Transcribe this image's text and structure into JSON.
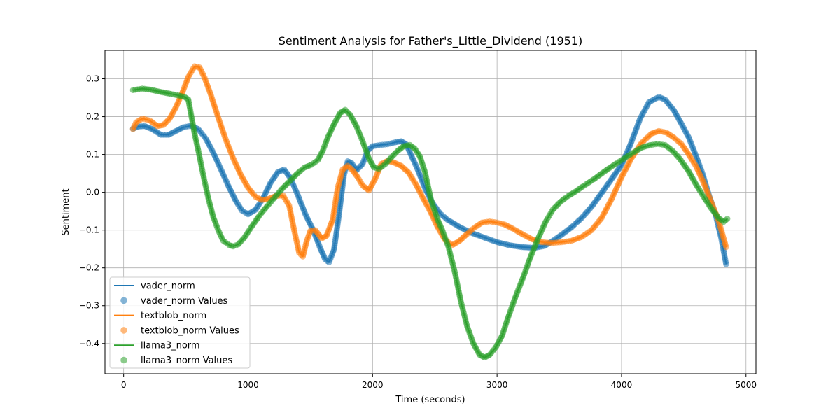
{
  "chart_data": {
    "type": "line",
    "title": "Sentiment Analysis for Father's_Little_Dividend (1951)",
    "xlabel": "Time (seconds)",
    "ylabel": "Sentiment",
    "xlim": [
      -150,
      5080
    ],
    "ylim": [
      -0.48,
      0.375
    ],
    "xticks": [
      0,
      1000,
      2000,
      3000,
      4000,
      5000
    ],
    "xtick_labels": [
      "0",
      "1000",
      "2000",
      "3000",
      "4000",
      "5000"
    ],
    "yticks": [
      0.3,
      0.2,
      0.1,
      0.0,
      -0.1,
      -0.2,
      -0.3,
      -0.4
    ],
    "ytick_labels": [
      "0.3",
      "0.2",
      "0.1",
      "0.0",
      "−0.1",
      "−0.2",
      "−0.3",
      "−0.4"
    ],
    "grid": true,
    "legend_position": "lower-left",
    "legend": [
      {
        "label": "vader_norm",
        "kind": "line",
        "color": "#1f77b4"
      },
      {
        "label": "vader_norm Values",
        "kind": "marker",
        "color": "#1f77b4"
      },
      {
        "label": "textblob_norm",
        "kind": "line",
        "color": "#ff7f0e"
      },
      {
        "label": "textblob_norm Values",
        "kind": "marker",
        "color": "#ff7f0e"
      },
      {
        "label": "llama3_norm",
        "kind": "line",
        "color": "#2ca02c"
      },
      {
        "label": "llama3_norm Values",
        "kind": "marker",
        "color": "#2ca02c"
      }
    ],
    "series": [
      {
        "name": "vader_norm",
        "color": "#1f77b4",
        "points": [
          [
            75,
            0.168
          ],
          [
            120,
            0.174
          ],
          [
            170,
            0.175
          ],
          [
            230,
            0.167
          ],
          [
            300,
            0.152
          ],
          [
            360,
            0.152
          ],
          [
            420,
            0.162
          ],
          [
            480,
            0.172
          ],
          [
            540,
            0.176
          ],
          [
            600,
            0.167
          ],
          [
            660,
            0.142
          ],
          [
            720,
            0.105
          ],
          [
            780,
            0.062
          ],
          [
            840,
            0.018
          ],
          [
            900,
            -0.022
          ],
          [
            950,
            -0.048
          ],
          [
            1000,
            -0.058
          ],
          [
            1060,
            -0.046
          ],
          [
            1120,
            -0.016
          ],
          [
            1180,
            0.025
          ],
          [
            1240,
            0.054
          ],
          [
            1290,
            0.06
          ],
          [
            1340,
            0.038
          ],
          [
            1400,
            -0.008
          ],
          [
            1460,
            -0.058
          ],
          [
            1520,
            -0.098
          ],
          [
            1580,
            -0.148
          ],
          [
            1620,
            -0.178
          ],
          [
            1650,
            -0.185
          ],
          [
            1690,
            -0.152
          ],
          [
            1730,
            -0.06
          ],
          [
            1770,
            0.045
          ],
          [
            1800,
            0.082
          ],
          [
            1830,
            0.078
          ],
          [
            1870,
            0.058
          ],
          [
            1920,
            0.075
          ],
          [
            1960,
            0.11
          ],
          [
            2000,
            0.122
          ],
          [
            2060,
            0.125
          ],
          [
            2120,
            0.127
          ],
          [
            2180,
            0.132
          ],
          [
            2230,
            0.135
          ],
          [
            2270,
            0.127
          ],
          [
            2300,
            0.105
          ],
          [
            2360,
            0.062
          ],
          [
            2420,
            0.012
          ],
          [
            2480,
            -0.028
          ],
          [
            2540,
            -0.055
          ],
          [
            2600,
            -0.072
          ],
          [
            2700,
            -0.092
          ],
          [
            2800,
            -0.108
          ],
          [
            2900,
            -0.12
          ],
          [
            3000,
            -0.132
          ],
          [
            3100,
            -0.14
          ],
          [
            3200,
            -0.145
          ],
          [
            3300,
            -0.147
          ],
          [
            3380,
            -0.142
          ],
          [
            3450,
            -0.128
          ],
          [
            3520,
            -0.112
          ],
          [
            3600,
            -0.092
          ],
          [
            3680,
            -0.068
          ],
          [
            3760,
            -0.038
          ],
          [
            3840,
            -0.002
          ],
          [
            3920,
            0.035
          ],
          [
            4000,
            0.072
          ],
          [
            4070,
            0.125
          ],
          [
            4150,
            0.195
          ],
          [
            4220,
            0.238
          ],
          [
            4300,
            0.252
          ],
          [
            4350,
            0.245
          ],
          [
            4420,
            0.217
          ],
          [
            4480,
            0.182
          ],
          [
            4540,
            0.145
          ],
          [
            4600,
            0.095
          ],
          [
            4650,
            0.05
          ],
          [
            4700,
            -0.005
          ],
          [
            4760,
            -0.065
          ],
          [
            4800,
            -0.12
          ],
          [
            4840,
            -0.19
          ]
        ]
      },
      {
        "name": "textblob_norm",
        "color": "#ff7f0e",
        "points": [
          [
            75,
            0.167
          ],
          [
            100,
            0.185
          ],
          [
            150,
            0.195
          ],
          [
            210,
            0.19
          ],
          [
            270,
            0.175
          ],
          [
            320,
            0.178
          ],
          [
            370,
            0.195
          ],
          [
            420,
            0.225
          ],
          [
            470,
            0.262
          ],
          [
            520,
            0.305
          ],
          [
            570,
            0.333
          ],
          [
            610,
            0.33
          ],
          [
            650,
            0.303
          ],
          [
            700,
            0.258
          ],
          [
            760,
            0.198
          ],
          [
            820,
            0.14
          ],
          [
            880,
            0.09
          ],
          [
            940,
            0.047
          ],
          [
            1000,
            0.012
          ],
          [
            1060,
            -0.012
          ],
          [
            1110,
            -0.02
          ],
          [
            1160,
            -0.018
          ],
          [
            1220,
            -0.01
          ],
          [
            1280,
            -0.008
          ],
          [
            1330,
            -0.035
          ],
          [
            1370,
            -0.1
          ],
          [
            1410,
            -0.16
          ],
          [
            1440,
            -0.17
          ],
          [
            1470,
            -0.13
          ],
          [
            1500,
            -0.102
          ],
          [
            1540,
            -0.1
          ],
          [
            1590,
            -0.122
          ],
          [
            1630,
            -0.115
          ],
          [
            1680,
            -0.072
          ],
          [
            1720,
            0.012
          ],
          [
            1760,
            0.06
          ],
          [
            1800,
            0.07
          ],
          [
            1840,
            0.058
          ],
          [
            1880,
            0.04
          ],
          [
            1920,
            0.018
          ],
          [
            1970,
            0.005
          ],
          [
            2020,
            0.035
          ],
          [
            2070,
            0.075
          ],
          [
            2120,
            0.083
          ],
          [
            2170,
            0.079
          ],
          [
            2230,
            0.07
          ],
          [
            2290,
            0.052
          ],
          [
            2350,
            0.02
          ],
          [
            2400,
            -0.012
          ],
          [
            2460,
            -0.048
          ],
          [
            2520,
            -0.09
          ],
          [
            2580,
            -0.125
          ],
          [
            2640,
            -0.14
          ],
          [
            2700,
            -0.128
          ],
          [
            2760,
            -0.11
          ],
          [
            2820,
            -0.093
          ],
          [
            2880,
            -0.08
          ],
          [
            2940,
            -0.077
          ],
          [
            3000,
            -0.08
          ],
          [
            3060,
            -0.085
          ],
          [
            3120,
            -0.095
          ],
          [
            3200,
            -0.11
          ],
          [
            3280,
            -0.124
          ],
          [
            3360,
            -0.132
          ],
          [
            3440,
            -0.134
          ],
          [
            3520,
            -0.132
          ],
          [
            3600,
            -0.128
          ],
          [
            3680,
            -0.118
          ],
          [
            3760,
            -0.1
          ],
          [
            3840,
            -0.068
          ],
          [
            3920,
            -0.018
          ],
          [
            4000,
            0.04
          ],
          [
            4080,
            0.09
          ],
          [
            4160,
            0.13
          ],
          [
            4240,
            0.155
          ],
          [
            4300,
            0.162
          ],
          [
            4360,
            0.158
          ],
          [
            4420,
            0.145
          ],
          [
            4480,
            0.128
          ],
          [
            4540,
            0.1
          ],
          [
            4600,
            0.068
          ],
          [
            4660,
            0.025
          ],
          [
            4720,
            -0.025
          ],
          [
            4780,
            -0.075
          ],
          [
            4840,
            -0.145
          ]
        ]
      },
      {
        "name": "llama3_norm",
        "color": "#2ca02c",
        "points": [
          [
            75,
            0.27
          ],
          [
            150,
            0.274
          ],
          [
            220,
            0.271
          ],
          [
            300,
            0.265
          ],
          [
            380,
            0.26
          ],
          [
            440,
            0.256
          ],
          [
            490,
            0.252
          ],
          [
            520,
            0.245
          ],
          [
            545,
            0.2
          ],
          [
            570,
            0.155
          ],
          [
            600,
            0.11
          ],
          [
            640,
            0.045
          ],
          [
            680,
            -0.015
          ],
          [
            720,
            -0.065
          ],
          [
            760,
            -0.1
          ],
          [
            800,
            -0.128
          ],
          [
            850,
            -0.14
          ],
          [
            880,
            -0.143
          ],
          [
            920,
            -0.138
          ],
          [
            970,
            -0.12
          ],
          [
            1030,
            -0.09
          ],
          [
            1090,
            -0.062
          ],
          [
            1150,
            -0.038
          ],
          [
            1210,
            -0.015
          ],
          [
            1270,
            0.008
          ],
          [
            1330,
            0.028
          ],
          [
            1390,
            0.048
          ],
          [
            1450,
            0.065
          ],
          [
            1510,
            0.073
          ],
          [
            1560,
            0.085
          ],
          [
            1600,
            0.11
          ],
          [
            1640,
            0.145
          ],
          [
            1690,
            0.18
          ],
          [
            1740,
            0.21
          ],
          [
            1780,
            0.218
          ],
          [
            1820,
            0.205
          ],
          [
            1870,
            0.175
          ],
          [
            1920,
            0.135
          ],
          [
            1970,
            0.09
          ],
          [
            2010,
            0.066
          ],
          [
            2050,
            0.062
          ],
          [
            2100,
            0.074
          ],
          [
            2150,
            0.092
          ],
          [
            2200,
            0.109
          ],
          [
            2250,
            0.122
          ],
          [
            2300,
            0.125
          ],
          [
            2340,
            0.115
          ],
          [
            2380,
            0.095
          ],
          [
            2420,
            0.055
          ],
          [
            2470,
            -0.02
          ],
          [
            2520,
            -0.07
          ],
          [
            2560,
            -0.1
          ],
          [
            2610,
            -0.145
          ],
          [
            2660,
            -0.21
          ],
          [
            2710,
            -0.29
          ],
          [
            2760,
            -0.355
          ],
          [
            2810,
            -0.4
          ],
          [
            2860,
            -0.43
          ],
          [
            2900,
            -0.437
          ],
          [
            2940,
            -0.43
          ],
          [
            2990,
            -0.41
          ],
          [
            3040,
            -0.38
          ],
          [
            3090,
            -0.33
          ],
          [
            3150,
            -0.275
          ],
          [
            3210,
            -0.225
          ],
          [
            3270,
            -0.17
          ],
          [
            3330,
            -0.122
          ],
          [
            3390,
            -0.078
          ],
          [
            3450,
            -0.045
          ],
          [
            3510,
            -0.025
          ],
          [
            3570,
            -0.01
          ],
          [
            3630,
            0.002
          ],
          [
            3700,
            0.018
          ],
          [
            3780,
            0.035
          ],
          [
            3850,
            0.052
          ],
          [
            3920,
            0.068
          ],
          [
            4000,
            0.085
          ],
          [
            4080,
            0.102
          ],
          [
            4160,
            0.118
          ],
          [
            4230,
            0.125
          ],
          [
            4290,
            0.128
          ],
          [
            4350,
            0.125
          ],
          [
            4410,
            0.11
          ],
          [
            4470,
            0.088
          ],
          [
            4540,
            0.055
          ],
          [
            4600,
            0.02
          ],
          [
            4660,
            -0.012
          ],
          [
            4720,
            -0.042
          ],
          [
            4780,
            -0.068
          ],
          [
            4820,
            -0.078
          ],
          [
            4850,
            -0.07
          ]
        ]
      }
    ]
  }
}
